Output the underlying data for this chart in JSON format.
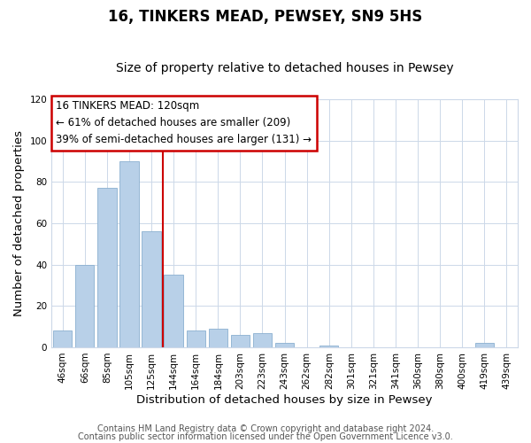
{
  "title": "16, TINKERS MEAD, PEWSEY, SN9 5HS",
  "subtitle": "Size of property relative to detached houses in Pewsey",
  "xlabel": "Distribution of detached houses by size in Pewsey",
  "ylabel": "Number of detached properties",
  "bar_labels": [
    "46sqm",
    "66sqm",
    "85sqm",
    "105sqm",
    "125sqm",
    "144sqm",
    "164sqm",
    "184sqm",
    "203sqm",
    "223sqm",
    "243sqm",
    "262sqm",
    "282sqm",
    "301sqm",
    "321sqm",
    "341sqm",
    "360sqm",
    "380sqm",
    "400sqm",
    "419sqm",
    "439sqm"
  ],
  "bar_values": [
    8,
    40,
    77,
    90,
    56,
    35,
    8,
    9,
    6,
    7,
    2,
    0,
    1,
    0,
    0,
    0,
    0,
    0,
    0,
    2,
    0
  ],
  "bar_color": "#b8d0e8",
  "bar_edge_color": "#8ab0d0",
  "vline_color": "#cc0000",
  "annotation_line1": "16 TINKERS MEAD: 120sqm",
  "annotation_line2": "← 61% of detached houses are smaller (209)",
  "annotation_line3": "39% of semi-detached houses are larger (131) →",
  "annotation_box_color": "#cc0000",
  "ylim": [
    0,
    120
  ],
  "yticks": [
    0,
    20,
    40,
    60,
    80,
    100,
    120
  ],
  "footer_line1": "Contains HM Land Registry data © Crown copyright and database right 2024.",
  "footer_line2": "Contains public sector information licensed under the Open Government Licence v3.0.",
  "background_color": "#ffffff",
  "grid_color": "#ccd8e8",
  "title_fontsize": 12,
  "subtitle_fontsize": 10,
  "axis_label_fontsize": 9.5,
  "tick_fontsize": 7.5,
  "annotation_fontsize": 8.5,
  "footer_fontsize": 7.0
}
